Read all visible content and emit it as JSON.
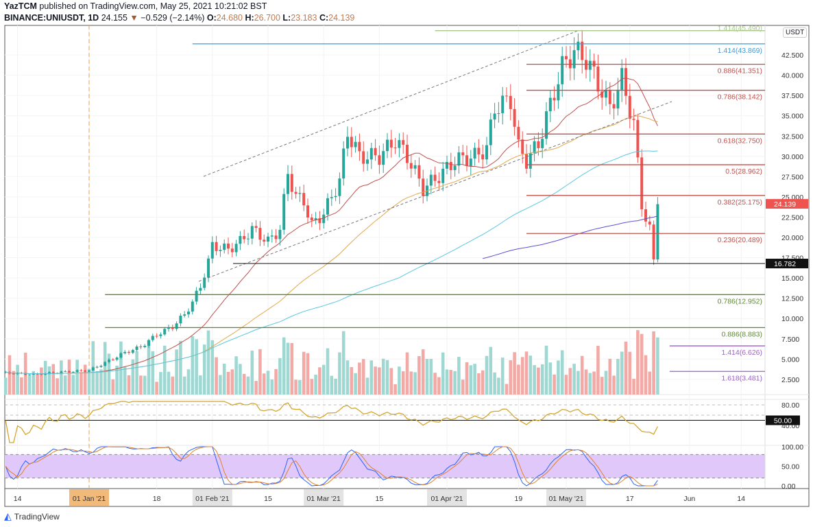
{
  "header": {
    "author": "YazTCM",
    "published": "published on TradingView.com, May 25, 2021 10:21:02 BST",
    "symbol": "BINANCE:UNIUSDT, 1D",
    "last": "24.155",
    "change": "−0.529 (−2.14%)",
    "o_label": "O:",
    "o": "24.680",
    "h_label": "H:",
    "h": "26.700",
    "l_label": "L:",
    "l": "23.183",
    "c_label": "C:",
    "c": "24.139"
  },
  "currency": "USDT",
  "brand": "TradingView",
  "colors": {
    "up": "#26a69a",
    "down": "#ef5350",
    "fib_red": "#c0504d",
    "fib_green": "#5b8a2e",
    "fib_purple": "#9c5fc7",
    "fib_blue": "#3b9bd8",
    "stoch_band": "#e1c8fb"
  },
  "chart_data": {
    "type": "candlestick",
    "title": "BINANCE:UNIUSDT, 1D",
    "x_start_day_offset_from_jan1": -21,
    "close_anchors": [
      [
        -21,
        3.3
      ],
      [
        -14,
        3.1
      ],
      [
        -7,
        3.4
      ],
      [
        0,
        3.6
      ],
      [
        5,
        4.8
      ],
      [
        9,
        5.8
      ],
      [
        13,
        6.5
      ],
      [
        17,
        8
      ],
      [
        21,
        9
      ],
      [
        24,
        10.5
      ],
      [
        26,
        12
      ],
      [
        28,
        14
      ],
      [
        30,
        17
      ],
      [
        31,
        19
      ],
      [
        35,
        18.5
      ],
      [
        38,
        19.5
      ],
      [
        41,
        21
      ],
      [
        45,
        19.5
      ],
      [
        48,
        21
      ],
      [
        50,
        28
      ],
      [
        52,
        25
      ],
      [
        54,
        24.5
      ],
      [
        56,
        21.5
      ],
      [
        59,
        23
      ],
      [
        63,
        27
      ],
      [
        65,
        33
      ],
      [
        68,
        30
      ],
      [
        73,
        30
      ],
      [
        77,
        32
      ],
      [
        80,
        30
      ],
      [
        82,
        28
      ],
      [
        84,
        26
      ],
      [
        89,
        28
      ],
      [
        92,
        29.5
      ],
      [
        97,
        30
      ],
      [
        100,
        31
      ],
      [
        102,
        36
      ],
      [
        106,
        37
      ],
      [
        108,
        31
      ],
      [
        110,
        29.5
      ],
      [
        113,
        31.5
      ],
      [
        117,
        38
      ],
      [
        119,
        41
      ],
      [
        122,
        43
      ],
      [
        125,
        42
      ],
      [
        127,
        40
      ],
      [
        131,
        36
      ],
      [
        134,
        39.5
      ],
      [
        137,
        34
      ],
      [
        139,
        24
      ],
      [
        141,
        21
      ],
      [
        142,
        17
      ],
      [
        143,
        24.1
      ]
    ],
    "ylim": [
      0,
      46
    ],
    "y_ticks": [
      "42.500",
      "40.000",
      "37.500",
      "35.000",
      "32.500",
      "30.000",
      "27.500",
      "25.000",
      "22.500",
      "20.000",
      "17.500",
      "15.000",
      "12.500",
      "10.000",
      "7.500",
      "5.000",
      "2.500"
    ],
    "x_ticks": [
      {
        "label": "14",
        "day": -18
      },
      {
        "label": "01 Jan '21",
        "day": 0,
        "hl": "orange"
      },
      {
        "label": "18",
        "day": 17
      },
      {
        "label": "01 Feb '21",
        "day": 31,
        "hl": "grey"
      },
      {
        "label": "15",
        "day": 45
      },
      {
        "label": "01 Mar '21",
        "day": 59,
        "hl": "grey"
      },
      {
        "label": "15",
        "day": 73
      },
      {
        "label": "01 Apr '21",
        "day": 90,
        "hl": "grey"
      },
      {
        "label": "19",
        "day": 108
      },
      {
        "label": "01 May '21",
        "day": 120,
        "hl": "grey"
      },
      {
        "label": "17",
        "day": 136
      },
      {
        "label": "Jun",
        "day": 151
      },
      {
        "label": "14",
        "day": 164
      }
    ],
    "fib_levels": [
      {
        "label": "1.414(45.490)",
        "value": 45.49,
        "color": "#a9c98a",
        "from_day": 87
      },
      {
        "label": "1.414(43.869)",
        "value": 43.869,
        "color": "#3b9bd8",
        "from_day": 26
      },
      {
        "label": "0.886(41.351)",
        "value": 41.351,
        "color": "#c0504d",
        "from_day": 110
      },
      {
        "label": "0.786(38.142)",
        "value": 38.142,
        "color": "#c0504d",
        "from_day": 110
      },
      {
        "label": "0.618(32.750)",
        "value": 32.75,
        "color": "#c0504d",
        "from_day": 110
      },
      {
        "label": "0.5(28.962)",
        "value": 28.962,
        "color": "#c0504d",
        "from_day": 110
      },
      {
        "label": "0.382(25.175)",
        "value": 25.175,
        "color": "#c0504d",
        "from_day": 110
      },
      {
        "label": "0.236(20.489)",
        "value": 20.489,
        "color": "#c0504d",
        "from_day": 110
      },
      {
        "label": "0.786(12.952)",
        "value": 12.952,
        "color": "#5b8a2e",
        "from_day": 4
      },
      {
        "label": "0.886(8.883)",
        "value": 8.883,
        "color": "#5b8a2e",
        "from_day": 4
      },
      {
        "label": "1.414(6.626)",
        "value": 6.626,
        "color": "#9c5fc7",
        "from_day": 146
      },
      {
        "label": "1.618(3.481)",
        "value": 3.481,
        "color": "#9c5fc7",
        "from_day": 146
      }
    ],
    "support": {
      "label": "16.782",
      "value": 16.782
    },
    "last_price_label": "24.139",
    "rsi": {
      "ticks": [
        "80.00",
        "40.00"
      ],
      "level_label": "50.00"
    },
    "stoch": {
      "ticks": [
        "100.00",
        "50.00",
        "0.00"
      ]
    }
  }
}
